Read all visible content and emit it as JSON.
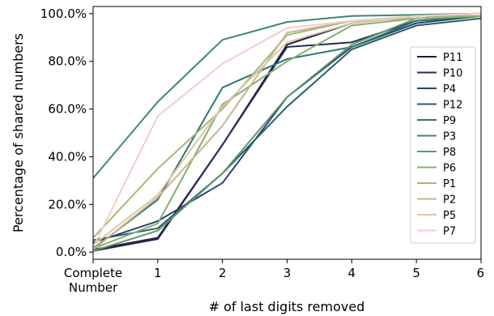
{
  "chart_data": {
    "type": "line",
    "x": [
      0,
      1,
      2,
      3,
      4,
      5,
      6
    ],
    "x_tick_labels": [
      [
        "Complete",
        "Number"
      ],
      [
        "1"
      ],
      [
        "2"
      ],
      [
        "3"
      ],
      [
        "4"
      ],
      [
        "5"
      ],
      [
        "6"
      ]
    ],
    "xlabel": "# of last digits removed",
    "ylabel": "Percentage of shared numbers",
    "ylim": [
      -3,
      103
    ],
    "y_ticks": [
      0,
      20,
      40,
      60,
      80,
      100
    ],
    "y_tick_labels": [
      "0.0%",
      "20.0%",
      "40.0%",
      "60.0%",
      "80.0%",
      "100.0%"
    ],
    "grid": false,
    "legend_position": "right",
    "series": [
      {
        "name": "P11",
        "color": "#1f1a33",
        "values": [
          1,
          6,
          45,
          87,
          96,
          99,
          100
        ]
      },
      {
        "name": "P10",
        "color": "#2a2a55",
        "values": [
          0.5,
          5.5,
          45,
          86,
          88,
          97,
          99
        ]
      },
      {
        "name": "P4",
        "color": "#2d4270",
        "values": [
          4,
          13,
          29,
          65,
          86,
          96,
          99
        ]
      },
      {
        "name": "P12",
        "color": "#2a5e6b",
        "values": [
          5,
          10,
          33,
          61,
          85,
          95,
          98
        ]
      },
      {
        "name": "P9",
        "color": "#2f7770",
        "values": [
          1.5,
          22,
          69,
          81,
          86,
          97,
          99
        ]
      },
      {
        "name": "P3",
        "color": "#3d8a6d",
        "values": [
          31,
          63,
          89,
          96.5,
          99,
          99.5,
          100
        ]
      },
      {
        "name": "P8",
        "color": "#5c9a6c",
        "values": [
          0.5,
          9,
          33,
          65,
          87,
          98,
          99
        ]
      },
      {
        "name": "P6",
        "color": "#86b06e",
        "values": [
          1.5,
          12,
          62,
          80,
          95,
          98,
          99
        ]
      },
      {
        "name": "P1",
        "color": "#a5b97a",
        "values": [
          6,
          35,
          60,
          91,
          97,
          98,
          100
        ]
      },
      {
        "name": "P2",
        "color": "#c7b58c",
        "values": [
          1,
          23,
          53,
          92,
          97,
          99,
          100
        ]
      },
      {
        "name": "P5",
        "color": "#ddc7a8",
        "values": [
          3,
          24,
          61,
          88,
          96,
          99,
          100
        ]
      },
      {
        "name": "P7",
        "color": "#efcfc8",
        "values": [
          2,
          57,
          79,
          94,
          97,
          99,
          100
        ]
      }
    ]
  }
}
